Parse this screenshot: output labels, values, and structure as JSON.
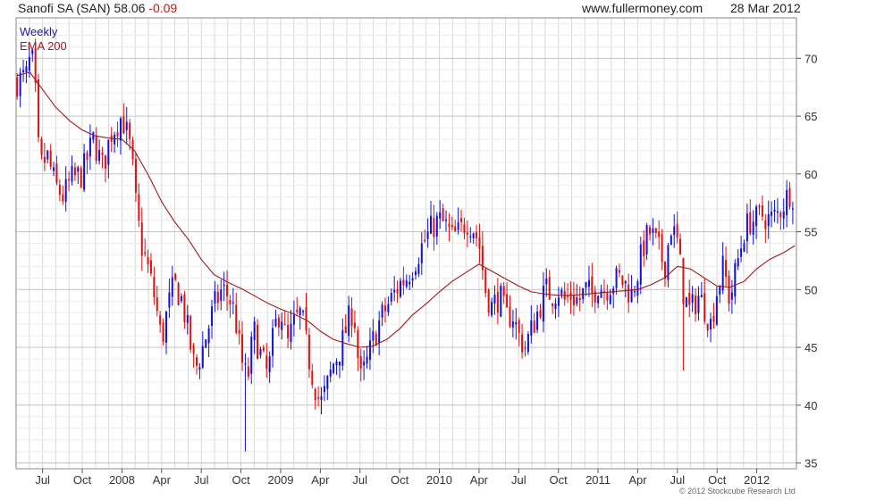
{
  "header": {
    "ticker_text": "Sanofi SA (SAN) 58.06",
    "change_text": "-0.09",
    "website": "www.fullermoney.com",
    "date": "28 Mar 2012"
  },
  "copyright": "© 2012 Stockcube Research Ltd",
  "colors": {
    "up": "#1010dd",
    "down": "#e01010",
    "ema": "#a01818",
    "grid": "#d8d8d8"
  },
  "chart_data": {
    "type": "candlestick",
    "frequency": "Weekly",
    "legend": [
      {
        "name": "Weekly",
        "color": "#1a1aa0"
      },
      {
        "name": "EMA 200",
        "color": "#a01818"
      }
    ],
    "ylim": [
      34.5,
      73.5
    ],
    "yticks": [
      35,
      40,
      45,
      50,
      55,
      60,
      65,
      70
    ],
    "xlim_months": [
      2007.333,
      2012.25
    ],
    "xticks": [
      {
        "label": "Jul",
        "t": 2007.5
      },
      {
        "label": "Oct",
        "t": 2007.75
      },
      {
        "label": "2008",
        "t": 2008.0
      },
      {
        "label": "Apr",
        "t": 2008.25
      },
      {
        "label": "Jul",
        "t": 2008.5
      },
      {
        "label": "Oct",
        "t": 2008.75
      },
      {
        "label": "2009",
        "t": 2009.0
      },
      {
        "label": "Apr",
        "t": 2009.25
      },
      {
        "label": "Jul",
        "t": 2009.5
      },
      {
        "label": "Oct",
        "t": 2009.75
      },
      {
        "label": "2010",
        "t": 2010.0
      },
      {
        "label": "Apr",
        "t": 2010.25
      },
      {
        "label": "Jul",
        "t": 2010.5
      },
      {
        "label": "Oct",
        "t": 2010.75
      },
      {
        "label": "2011",
        "t": 2011.0
      },
      {
        "label": "Apr",
        "t": 2011.25
      },
      {
        "label": "Jul",
        "t": 2011.5
      },
      {
        "label": "Oct",
        "t": 2011.75
      },
      {
        "label": "2012",
        "t": 2012.0
      }
    ],
    "close_anchors": [
      [
        2007.34,
        68.0
      ],
      [
        2007.4,
        68.5
      ],
      [
        2007.43,
        70.5
      ],
      [
        2007.46,
        66.0
      ],
      [
        2007.48,
        60.5
      ],
      [
        2007.53,
        61.5
      ],
      [
        2007.58,
        59.0
      ],
      [
        2007.63,
        58.0
      ],
      [
        2007.68,
        59.5
      ],
      [
        2007.75,
        60.0
      ],
      [
        2007.82,
        63.0
      ],
      [
        2007.88,
        60.5
      ],
      [
        2007.93,
        63.5
      ],
      [
        2008.0,
        65.0
      ],
      [
        2008.04,
        63.0
      ],
      [
        2008.06,
        61.5
      ],
      [
        2008.09,
        57.0
      ],
      [
        2008.12,
        54.0
      ],
      [
        2008.17,
        51.5
      ],
      [
        2008.21,
        49.0
      ],
      [
        2008.25,
        45.5
      ],
      [
        2008.29,
        48.5
      ],
      [
        2008.33,
        50.5
      ],
      [
        2008.38,
        49.0
      ],
      [
        2008.42,
        46.0
      ],
      [
        2008.46,
        43.0
      ],
      [
        2008.5,
        44.5
      ],
      [
        2008.54,
        46.5
      ],
      [
        2008.58,
        48.5
      ],
      [
        2008.63,
        50.0
      ],
      [
        2008.67,
        49.5
      ],
      [
        2008.71,
        48.0
      ],
      [
        2008.75,
        44.0
      ],
      [
        2008.79,
        42.0
      ],
      [
        2008.83,
        46.5
      ],
      [
        2008.88,
        44.0
      ],
      [
        2008.92,
        42.5
      ],
      [
        2008.96,
        46.5
      ],
      [
        2009.0,
        48.5
      ],
      [
        2009.04,
        45.0
      ],
      [
        2009.08,
        47.0
      ],
      [
        2009.13,
        48.0
      ],
      [
        2009.17,
        44.5
      ],
      [
        2009.21,
        42.0
      ],
      [
        2009.25,
        40.0
      ],
      [
        2009.29,
        41.5
      ],
      [
        2009.33,
        43.5
      ],
      [
        2009.38,
        45.0
      ],
      [
        2009.42,
        47.0
      ],
      [
        2009.46,
        48.5
      ],
      [
        2009.5,
        42.0
      ],
      [
        2009.54,
        43.5
      ],
      [
        2009.58,
        45.5
      ],
      [
        2009.63,
        47.5
      ],
      [
        2009.67,
        48.5
      ],
      [
        2009.71,
        49.5
      ],
      [
        2009.75,
        50.5
      ],
      [
        2009.79,
        51.0
      ],
      [
        2009.83,
        52.0
      ],
      [
        2009.88,
        53.5
      ],
      [
        2009.92,
        54.5
      ],
      [
        2009.96,
        55.5
      ],
      [
        2010.0,
        56.0
      ],
      [
        2010.04,
        55.5
      ],
      [
        2010.08,
        54.5
      ],
      [
        2010.13,
        55.0
      ],
      [
        2010.17,
        56.0
      ],
      [
        2010.21,
        55.5
      ],
      [
        2010.25,
        54.0
      ],
      [
        2010.29,
        50.0
      ],
      [
        2010.33,
        48.5
      ],
      [
        2010.38,
        49.5
      ],
      [
        2010.42,
        47.5
      ],
      [
        2010.46,
        48.0
      ],
      [
        2010.5,
        46.0
      ],
      [
        2010.54,
        45.0
      ],
      [
        2010.58,
        46.5
      ],
      [
        2010.63,
        48.5
      ],
      [
        2010.67,
        50.0
      ],
      [
        2010.71,
        49.5
      ],
      [
        2010.75,
        50.0
      ],
      [
        2010.79,
        49.0
      ],
      [
        2010.83,
        49.5
      ],
      [
        2010.88,
        49.0
      ],
      [
        2010.92,
        50.0
      ],
      [
        2010.96,
        49.5
      ],
      [
        2011.0,
        50.5
      ],
      [
        2011.04,
        50.0
      ],
      [
        2011.08,
        50.5
      ],
      [
        2011.13,
        51.0
      ],
      [
        2011.17,
        50.5
      ],
      [
        2011.21,
        49.5
      ],
      [
        2011.25,
        51.5
      ],
      [
        2011.29,
        54.0
      ],
      [
        2011.33,
        55.0
      ],
      [
        2011.38,
        53.5
      ],
      [
        2011.42,
        52.0
      ],
      [
        2011.46,
        55.5
      ],
      [
        2011.5,
        54.0
      ],
      [
        2011.54,
        49.5
      ],
      [
        2011.58,
        48.0
      ],
      [
        2011.63,
        49.5
      ],
      [
        2011.67,
        48.5
      ],
      [
        2011.71,
        47.0
      ],
      [
        2011.75,
        50.0
      ],
      [
        2011.79,
        52.0
      ],
      [
        2011.83,
        49.0
      ],
      [
        2011.88,
        52.5
      ],
      [
        2011.92,
        55.0
      ],
      [
        2011.96,
        56.0
      ],
      [
        2012.0,
        56.0
      ],
      [
        2012.04,
        56.5
      ],
      [
        2012.08,
        56.0
      ],
      [
        2012.13,
        56.5
      ],
      [
        2012.17,
        57.5
      ],
      [
        2012.21,
        58.5
      ],
      [
        2012.24,
        58.06
      ]
    ],
    "ema_points": [
      [
        2007.34,
        68.5
      ],
      [
        2007.42,
        68.8
      ],
      [
        2007.5,
        67.3
      ],
      [
        2007.58,
        65.8
      ],
      [
        2007.67,
        64.6
      ],
      [
        2007.75,
        63.8
      ],
      [
        2007.83,
        63.3
      ],
      [
        2007.92,
        63.1
      ],
      [
        2008.0,
        63.0
      ],
      [
        2008.08,
        62.0
      ],
      [
        2008.17,
        59.8
      ],
      [
        2008.25,
        57.6
      ],
      [
        2008.33,
        55.9
      ],
      [
        2008.42,
        54.3
      ],
      [
        2008.5,
        52.6
      ],
      [
        2008.58,
        51.3
      ],
      [
        2008.67,
        50.6
      ],
      [
        2008.75,
        50.1
      ],
      [
        2008.83,
        49.5
      ],
      [
        2008.92,
        48.8
      ],
      [
        2009.0,
        48.3
      ],
      [
        2009.08,
        47.9
      ],
      [
        2009.17,
        47.3
      ],
      [
        2009.25,
        46.4
      ],
      [
        2009.33,
        45.7
      ],
      [
        2009.42,
        45.3
      ],
      [
        2009.5,
        45.0
      ],
      [
        2009.58,
        45.1
      ],
      [
        2009.67,
        45.7
      ],
      [
        2009.75,
        46.6
      ],
      [
        2009.83,
        47.8
      ],
      [
        2009.92,
        48.8
      ],
      [
        2010.0,
        49.8
      ],
      [
        2010.08,
        50.7
      ],
      [
        2010.17,
        51.5
      ],
      [
        2010.25,
        52.2
      ],
      [
        2010.33,
        51.6
      ],
      [
        2010.42,
        50.9
      ],
      [
        2010.5,
        50.3
      ],
      [
        2010.58,
        49.8
      ],
      [
        2010.67,
        49.6
      ],
      [
        2010.75,
        49.5
      ],
      [
        2010.83,
        49.5
      ],
      [
        2010.92,
        49.6
      ],
      [
        2011.0,
        49.7
      ],
      [
        2011.08,
        49.8
      ],
      [
        2011.17,
        49.9
      ],
      [
        2011.25,
        50.0
      ],
      [
        2011.33,
        50.4
      ],
      [
        2011.42,
        51.0
      ],
      [
        2011.5,
        52.0
      ],
      [
        2011.58,
        51.8
      ],
      [
        2011.67,
        51.0
      ],
      [
        2011.75,
        50.3
      ],
      [
        2011.83,
        50.2
      ],
      [
        2011.92,
        50.7
      ],
      [
        2012.0,
        51.8
      ],
      [
        2012.08,
        52.6
      ],
      [
        2012.17,
        53.2
      ],
      [
        2012.24,
        53.8
      ]
    ],
    "spikes": [
      {
        "t": 2008.77,
        "low": 36.0
      },
      {
        "t": 2011.54,
        "low": 43.0
      },
      {
        "t": 2011.58,
        "low": 50.0
      }
    ]
  }
}
